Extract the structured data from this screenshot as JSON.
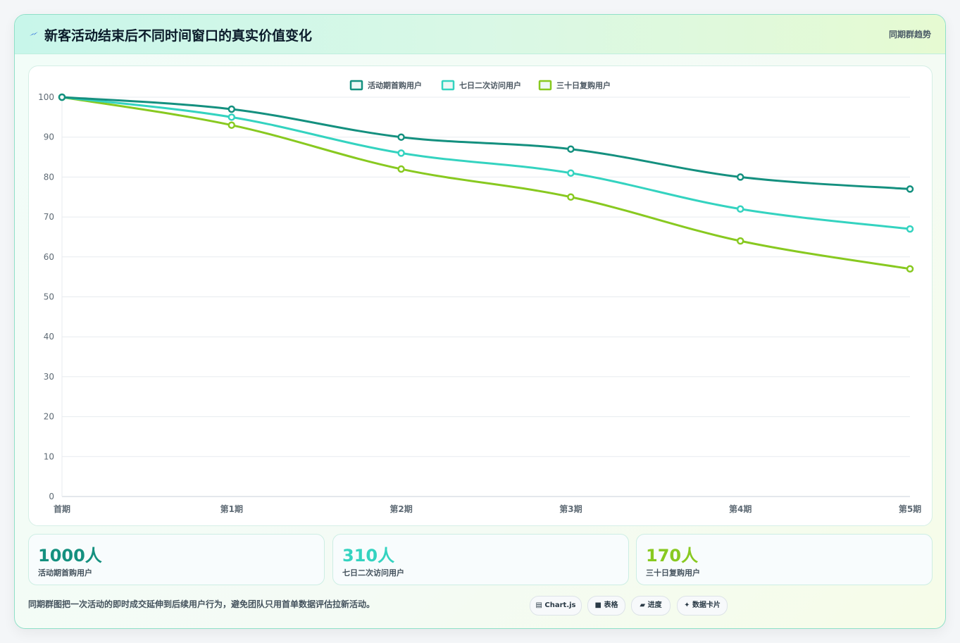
{
  "header": {
    "title": "新客活动结束后不同时间窗口的真实价值变化",
    "badge": "同期群趋势",
    "icon": "lightning-icon"
  },
  "chart_data": {
    "type": "line",
    "title": "",
    "xlabel": "",
    "ylabel": "",
    "categories": [
      "首期",
      "第1期",
      "第2期",
      "第3期",
      "第4期",
      "第5期"
    ],
    "ylim": [
      0,
      100
    ],
    "yticks": [
      0,
      10,
      20,
      30,
      40,
      50,
      60,
      70,
      80,
      90,
      100
    ],
    "grid": true,
    "legend_position": "top",
    "series": [
      {
        "name": "活动期首购用户",
        "color": "#14907f",
        "values": [
          100,
          97,
          90,
          87,
          80,
          77
        ]
      },
      {
        "name": "七日二次访问用户",
        "color": "#34d3c0",
        "values": [
          100,
          95,
          86,
          81,
          72,
          67
        ]
      },
      {
        "name": "三十日复购用户",
        "color": "#88c920",
        "values": [
          100,
          93,
          82,
          75,
          64,
          57
        ]
      }
    ]
  },
  "stats": [
    {
      "value": "1000人",
      "label": "活动期首购用户",
      "color": "#14907f"
    },
    {
      "value": "310人",
      "label": "七日二次访问用户",
      "color": "#34d3c0"
    },
    {
      "value": "170人",
      "label": "三十日复购用户",
      "color": "#88c920"
    }
  ],
  "footnote": "同期群图把一次活动的即时成交延伸到后续用户行为，避免团队只用首单数据评估拉新活动。",
  "pills": [
    {
      "label": "Chart.js",
      "icon": "chart-icon"
    },
    {
      "label": "表格",
      "icon": "table-icon"
    },
    {
      "label": "进度",
      "icon": "progress-icon"
    },
    {
      "label": "数据卡片",
      "icon": "card-icon"
    }
  ]
}
